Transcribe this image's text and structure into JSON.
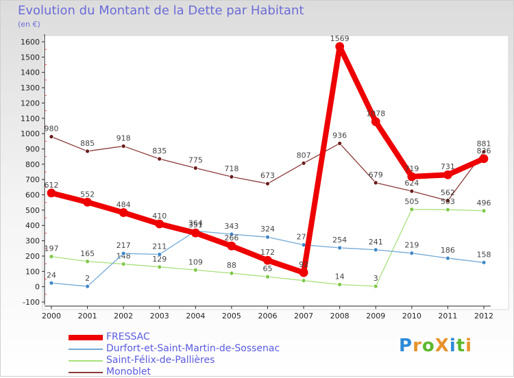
{
  "title": "Evolution du Montant de la Dette par Habitant",
  "subtitle": "(en €)",
  "logo": {
    "text": "ProXiti",
    "letter_colors": [
      "#2e8ad8",
      "#e8922a",
      "#5cb82e",
      "#e8922a",
      "#2e8ad8",
      "#5cb82e",
      "#e8922a"
    ]
  },
  "chart_data": {
    "type": "line",
    "title": "Evolution du Montant de la Dette par Habitant",
    "ylabel": "(en €)",
    "xlabel": "",
    "x": [
      "2000",
      "2001",
      "2002",
      "2003",
      "2004",
      "2005",
      "2006",
      "2007",
      "2008",
      "2009",
      "2010",
      "2011",
      "2012"
    ],
    "ylim": [
      -100,
      1600
    ],
    "yticks": [
      -100,
      0,
      100,
      200,
      300,
      400,
      500,
      600,
      700,
      800,
      900,
      1000,
      1100,
      1200,
      1300,
      1400,
      1500,
      1600
    ],
    "grid": false,
    "legend_position": "bottom-left",
    "series": [
      {
        "name": "Monoblet",
        "color": "#8b3a3a",
        "marker": "#6a1a1a",
        "values": [
          980,
          885,
          918,
          835,
          775,
          718,
          673,
          807,
          936,
          679,
          624,
          562,
          881
        ]
      },
      {
        "name": "Saint-Félix-de-Pallières",
        "color": "#a8e07a",
        "marker": "#7ec84a",
        "values": [
          197,
          165,
          148,
          129,
          109,
          88,
          65,
          40,
          14,
          3,
          505,
          503,
          496
        ]
      },
      {
        "name": "Durfort-et-Saint-Martin-de-Sossenac",
        "color": "#6fa8d6",
        "marker": "#3f88c8",
        "values": [
          24,
          2,
          217,
          211,
          364,
          343,
          324,
          273,
          254,
          241,
          219,
          186,
          158
        ]
      },
      {
        "name": "FRESSAC",
        "color": "#ee0000",
        "marker": "#ee0000",
        "values": [
          612,
          552,
          484,
          410,
          351,
          266,
          172,
          92,
          1569,
          1078,
          719,
          731,
          836
        ]
      }
    ],
    "data_labels": [
      [
        "980",
        "885",
        "918",
        "835",
        "775",
        "718",
        "673",
        "807",
        "936",
        "679",
        "624",
        "562",
        "881"
      ],
      [
        "197",
        "165",
        "148",
        "129",
        "109",
        "88",
        "65",
        "40",
        "14",
        "3",
        "505",
        "503",
        "496"
      ],
      [
        "24",
        "2",
        "217",
        "211",
        "364",
        "343",
        "324",
        "273",
        "254",
        "241",
        "219",
        "186",
        "158"
      ],
      [
        "612",
        "552",
        "484",
        "410",
        "351",
        "266",
        "172",
        "92",
        "1569",
        "1078",
        "719",
        "731",
        "836"
      ]
    ]
  },
  "legend": [
    {
      "name": "FRESSAC",
      "color": "#ee0000",
      "thick": true
    },
    {
      "name": "Durfort-et-Saint-Martin-de-Sossenac",
      "color": "#6fa8d6",
      "thick": false
    },
    {
      "name": "Saint-Félix-de-Pallières",
      "color": "#a8e07a",
      "thick": false
    },
    {
      "name": "Monoblet",
      "color": "#8b3a3a",
      "thick": false
    }
  ]
}
